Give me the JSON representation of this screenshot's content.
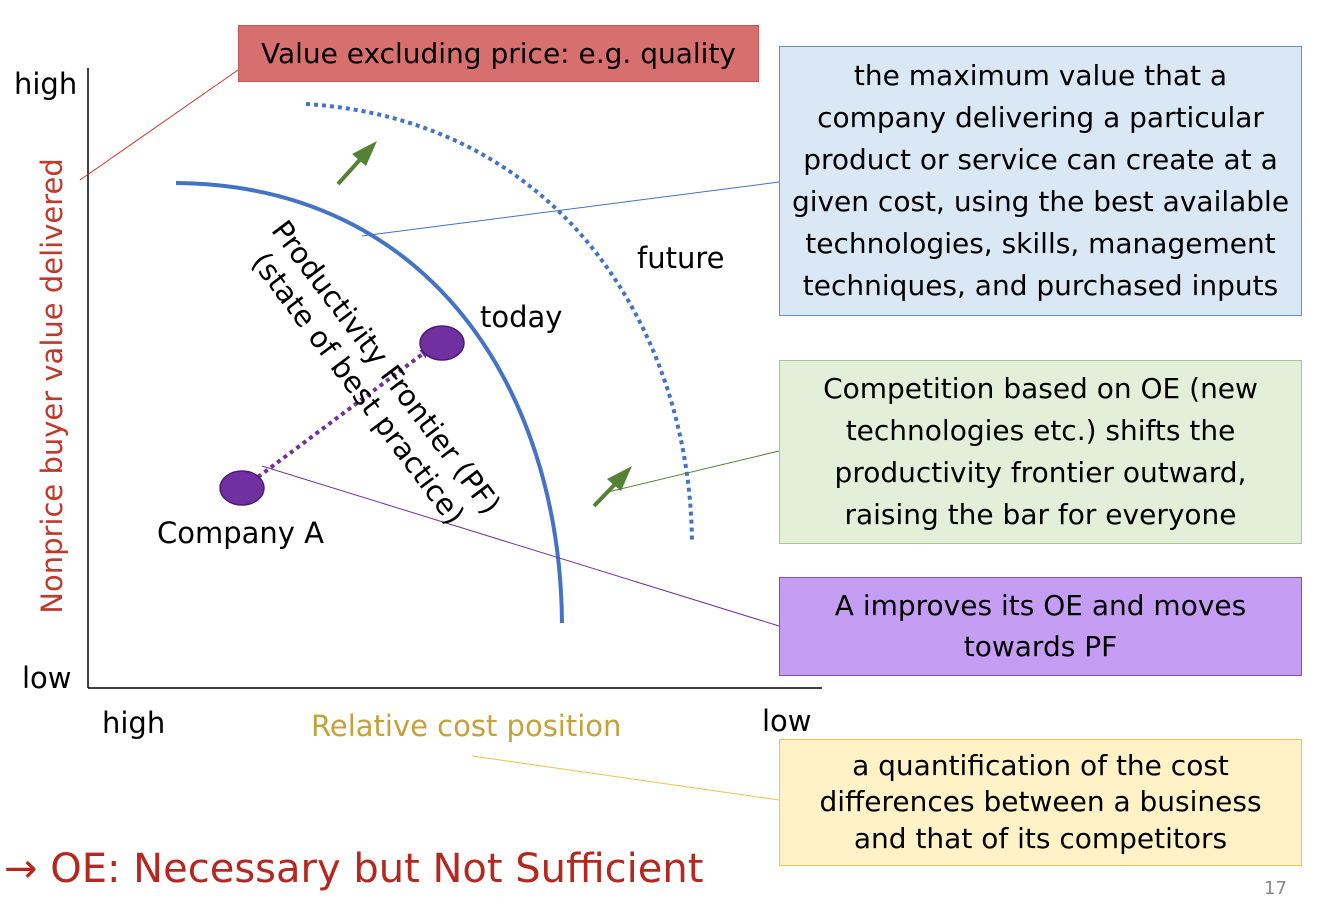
{
  "y_axis": {
    "title": "Nonprice buyer value delivered",
    "high": "high",
    "low": "low"
  },
  "x_axis": {
    "title": "Relative cost position",
    "high": "high",
    "low": "low"
  },
  "curve_labels": {
    "pf_line1": "Productivity Frontier (PF)",
    "pf_line2": "(state of best practice)",
    "today": "today",
    "future": "future",
    "company": "Company A"
  },
  "callouts": {
    "value_excluding_price": "Value excluding price: e.g. quality",
    "pf_definition": [
      "the maximum value that a",
      "company delivering a particular",
      "product or service can create at a",
      "given cost, using the best available",
      "technologies, skills, management",
      "techniques, and purchased inputs"
    ],
    "oe_shift": [
      "Competition based on OE (new",
      "technologies etc.) shifts the",
      "productivity frontier outward,",
      "raising the bar for everyone"
    ],
    "improves": [
      "A improves its OE and moves",
      "towards PF"
    ],
    "cost_definition": [
      "a quantification of the cost",
      "differences between a business",
      "and that of its competitors"
    ]
  },
  "conclusion": "→ OE: Necessary but Not Sufficient",
  "slide_number": "17",
  "colors": {
    "frontier": "#4472c4",
    "company_dot": "#7030a0",
    "arrow": "#548235",
    "y_title": "#c0392b",
    "x_title": "#c4a23a"
  }
}
